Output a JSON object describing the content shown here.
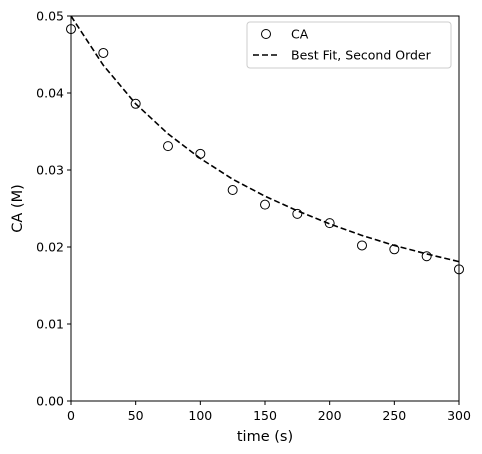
{
  "chart_data": {
    "type": "scatter",
    "xlabel": "time (s)",
    "ylabel": "CA (M)",
    "xlim": [
      0,
      300
    ],
    "ylim": [
      0,
      0.05
    ],
    "x_ticks": [
      0,
      50,
      100,
      150,
      200,
      250,
      300
    ],
    "y_ticks": [
      0.0,
      0.01,
      0.02,
      0.03,
      0.04,
      0.05
    ],
    "x_tick_labels": [
      "0",
      "50",
      "100",
      "150",
      "200",
      "250",
      "300"
    ],
    "y_tick_labels": [
      "0.00",
      "0.01",
      "0.02",
      "0.03",
      "0.04",
      "0.05"
    ],
    "grid": false,
    "legend_position": "top-right",
    "series": [
      {
        "name": "CA",
        "kind": "markers",
        "marker": "open-circle",
        "color": "#000000",
        "x": [
          0,
          25,
          50,
          75,
          100,
          125,
          150,
          175,
          200,
          225,
          250,
          275,
          300
        ],
        "y": [
          0.0483,
          0.0452,
          0.0386,
          0.0331,
          0.0321,
          0.0274,
          0.0255,
          0.0243,
          0.0231,
          0.0202,
          0.0197,
          0.0188,
          0.0171
        ]
      },
      {
        "name": "Best Fit, Second Order",
        "kind": "line",
        "line_style": "dashed",
        "color": "#000000",
        "x": [
          0,
          25,
          50,
          75,
          100,
          125,
          150,
          175,
          200,
          225,
          250,
          275,
          300
        ],
        "y": [
          0.05,
          0.0436,
          0.0386,
          0.0347,
          0.0315,
          0.0288,
          0.0266,
          0.0247,
          0.023,
          0.0215,
          0.0202,
          0.0191,
          0.0181
        ]
      }
    ]
  }
}
